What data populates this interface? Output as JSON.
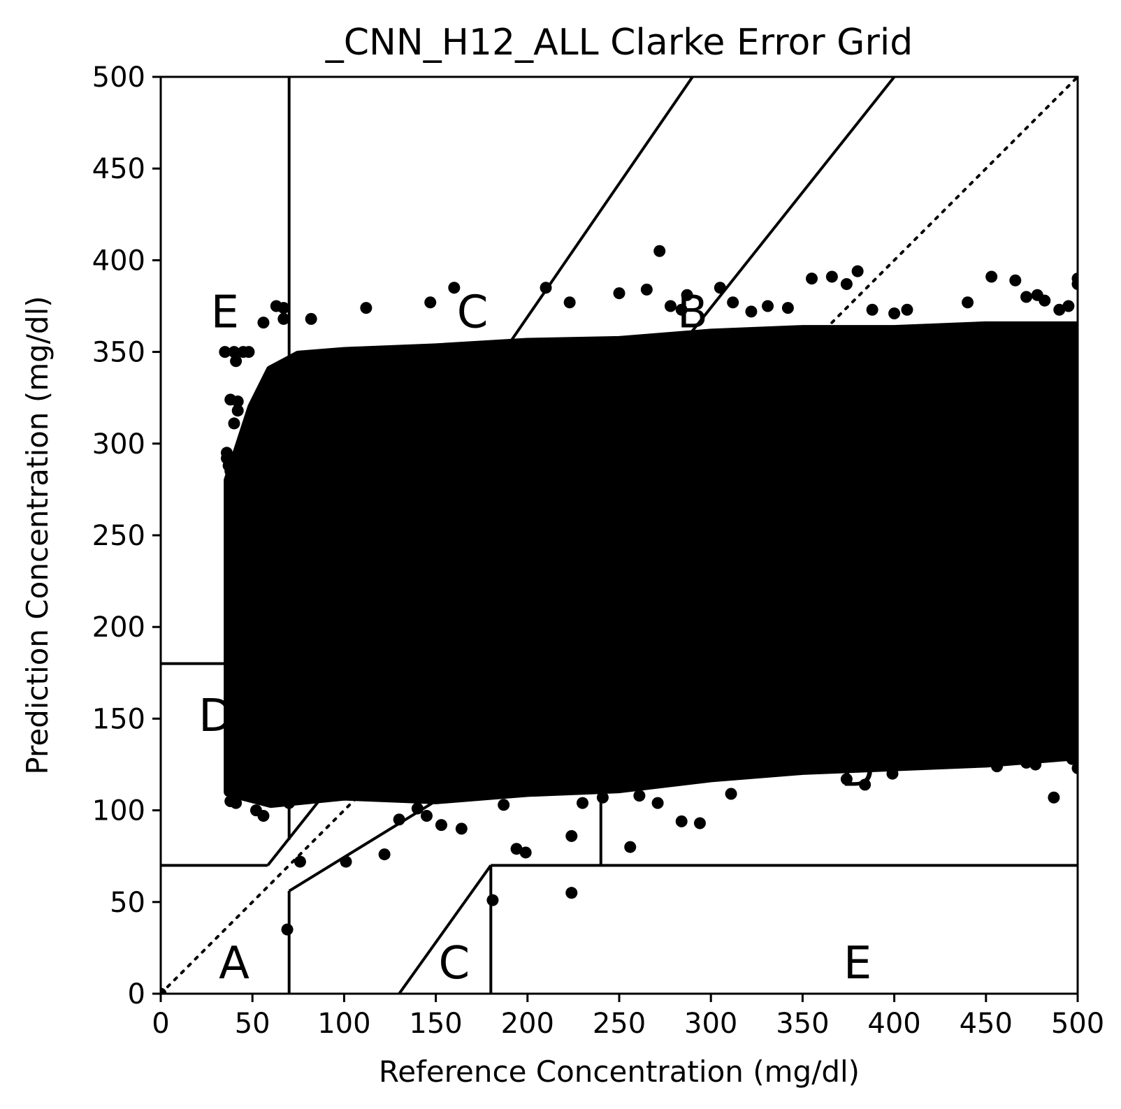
{
  "chart_data": {
    "type": "scatter",
    "title": "_CNN_H12_ALL Clarke Error Grid",
    "xlabel": "Reference Concentration (mg/dl)",
    "ylabel": "Prediction Concentration (mg/dl)",
    "xlim": [
      0,
      500
    ],
    "ylim": [
      0,
      500
    ],
    "xticks": [
      0,
      50,
      100,
      150,
      200,
      250,
      300,
      350,
      400,
      450,
      500
    ],
    "yticks": [
      0,
      50,
      100,
      150,
      200,
      250,
      300,
      350,
      400,
      450,
      500
    ],
    "grid": false,
    "legend": "none",
    "marker_color": "#000000",
    "dense_region": {
      "x_range": [
        37,
        500
      ],
      "y_min_at_x": [
        [
          37,
          110
        ],
        [
          60,
          104
        ],
        [
          100,
          108
        ],
        [
          150,
          106
        ],
        [
          200,
          110
        ],
        [
          250,
          112
        ],
        [
          300,
          118
        ],
        [
          350,
          122
        ],
        [
          400,
          124
        ],
        [
          450,
          126
        ],
        [
          500,
          130
        ]
      ],
      "y_max_at_x": [
        [
          37,
          280
        ],
        [
          50,
          320
        ],
        [
          60,
          340
        ],
        [
          75,
          348
        ],
        [
          100,
          350
        ],
        [
          150,
          352
        ],
        [
          200,
          355
        ],
        [
          250,
          356
        ],
        [
          300,
          360
        ],
        [
          350,
          362
        ],
        [
          400,
          362
        ],
        [
          450,
          364
        ],
        [
          500,
          364
        ]
      ]
    },
    "outlier_points": [
      [
        0,
        0
      ],
      [
        69,
        35
      ],
      [
        76,
        72
      ],
      [
        101,
        72
      ],
      [
        122,
        76
      ],
      [
        181,
        51
      ],
      [
        224,
        55
      ],
      [
        194,
        79
      ],
      [
        199,
        77
      ],
      [
        224,
        86
      ],
      [
        256,
        80
      ],
      [
        284,
        94
      ],
      [
        294,
        93
      ],
      [
        272,
        405
      ],
      [
        210,
        385
      ],
      [
        223,
        377
      ],
      [
        250,
        382
      ],
      [
        265,
        384
      ],
      [
        160,
        385
      ],
      [
        147,
        377
      ],
      [
        112,
        374
      ],
      [
        82,
        368
      ],
      [
        63,
        375
      ],
      [
        67,
        374
      ],
      [
        67,
        368
      ],
      [
        56,
        366
      ],
      [
        35,
        350
      ],
      [
        40,
        350
      ],
      [
        45,
        350
      ],
      [
        48,
        350
      ],
      [
        41,
        345
      ],
      [
        38,
        324
      ],
      [
        42,
        323
      ],
      [
        42,
        318
      ],
      [
        40,
        311
      ],
      [
        36,
        295
      ],
      [
        36,
        292
      ],
      [
        37,
        288
      ],
      [
        38,
        285
      ],
      [
        40,
        290
      ],
      [
        46,
        280
      ],
      [
        38,
        105
      ],
      [
        41,
        104
      ],
      [
        52,
        100
      ],
      [
        56,
        97
      ],
      [
        70,
        104
      ],
      [
        73,
        108
      ],
      [
        164,
        90
      ],
      [
        153,
        92
      ],
      [
        145,
        97
      ],
      [
        130,
        95
      ],
      [
        140,
        101
      ],
      [
        187,
        103
      ],
      [
        230,
        104
      ],
      [
        241,
        107
      ],
      [
        261,
        108
      ],
      [
        271,
        104
      ],
      [
        311,
        109
      ],
      [
        374,
        117
      ],
      [
        384,
        114
      ],
      [
        399,
        120
      ],
      [
        487,
        107
      ],
      [
        418,
        130
      ],
      [
        430,
        133
      ],
      [
        446,
        131
      ],
      [
        456,
        124
      ],
      [
        472,
        126
      ],
      [
        477,
        125
      ],
      [
        482,
        133
      ],
      [
        489,
        142
      ],
      [
        497,
        128
      ],
      [
        500,
        123
      ],
      [
        355,
        390
      ],
      [
        366,
        391
      ],
      [
        374,
        387
      ],
      [
        380,
        394
      ],
      [
        440,
        377
      ],
      [
        453,
        391
      ],
      [
        466,
        389
      ],
      [
        472,
        380
      ],
      [
        478,
        381
      ],
      [
        482,
        378
      ],
      [
        490,
        373
      ],
      [
        500,
        390
      ],
      [
        500,
        387
      ],
      [
        495,
        375
      ],
      [
        305,
        385
      ],
      [
        312,
        377
      ],
      [
        322,
        372
      ],
      [
        331,
        375
      ],
      [
        342,
        374
      ],
      [
        388,
        373
      ],
      [
        400,
        371
      ],
      [
        407,
        373
      ],
      [
        287,
        381
      ],
      [
        284,
        373
      ],
      [
        278,
        375
      ]
    ]
  },
  "zones": {
    "boundary_lines": [
      {
        "x": [
          0,
          58.333
        ],
        "y": [
          70,
          70
        ]
      },
      {
        "x": [
          58.333,
          400
        ],
        "y": [
          70,
          500
        ]
      },
      {
        "x": [
          70,
          70
        ],
        "y": [
          84,
          500
        ]
      },
      {
        "x": [
          70,
          290
        ],
        "y": [
          180,
          500
        ]
      },
      {
        "x": [
          0,
          70
        ],
        "y": [
          180,
          180
        ]
      },
      {
        "x": [
          70,
          70
        ],
        "y": [
          0,
          56
        ]
      },
      {
        "x": [
          70,
          500
        ],
        "y": [
          56,
          320
        ]
      },
      {
        "x": [
          130,
          180
        ],
        "y": [
          0,
          70
        ]
      },
      {
        "x": [
          180,
          180
        ],
        "y": [
          0,
          70
        ]
      },
      {
        "x": [
          180,
          500
        ],
        "y": [
          70,
          70
        ]
      },
      {
        "x": [
          240,
          240
        ],
        "y": [
          70,
          180
        ]
      },
      {
        "x": [
          240,
          500
        ],
        "y": [
          180,
          180
        ]
      }
    ],
    "identity_line": {
      "x": [
        0,
        500
      ],
      "y": [
        0,
        500
      ]
    },
    "labels": [
      {
        "text": "A",
        "x": 40,
        "y": 15
      },
      {
        "text": "B",
        "x": 290,
        "y": 370
      },
      {
        "text": "B",
        "x": 370,
        "y": 260
      },
      {
        "text": "C",
        "x": 170,
        "y": 370
      },
      {
        "text": "C",
        "x": 160,
        "y": 15
      },
      {
        "text": "D",
        "x": 30,
        "y": 150
      },
      {
        "text": "D",
        "x": 380,
        "y": 120
      },
      {
        "text": "E",
        "x": 35,
        "y": 370
      },
      {
        "text": "E",
        "x": 380,
        "y": 15
      }
    ]
  }
}
